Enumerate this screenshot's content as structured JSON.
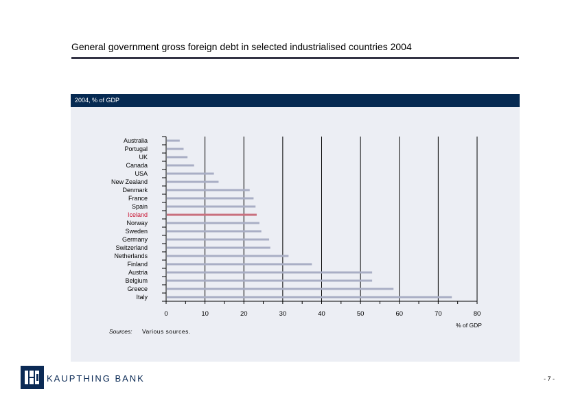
{
  "page": {
    "title": "General government gross foreign debt in selected industrialised countries 2004",
    "page_number": "- 7 -"
  },
  "panel": {
    "header": "2004, % of GDP",
    "sources_label": "Sources:",
    "sources_text": "Various sources."
  },
  "footer": {
    "brand": "KAUPTHING BANK"
  },
  "colors": {
    "bar": "#a9aec5",
    "highlight_bar": "#c9707e",
    "highlight_label": "#c8102e",
    "header_bg": "#062a52",
    "panel_bg": "#eceef4"
  },
  "chart_data": {
    "type": "bar",
    "orientation": "horizontal",
    "categories": [
      "Australia",
      "Portugal",
      "UK",
      "Canada",
      "USA",
      "New Zealand",
      "Denmark",
      "France",
      "Spain",
      "Iceland",
      "Norway",
      "Sweden",
      "Germany",
      "Switzerland",
      "Netherlands",
      "Finland",
      "Austria",
      "Belgium",
      "Greece",
      "Italy"
    ],
    "values": [
      3.5,
      4.5,
      5.5,
      7.2,
      12.3,
      13.5,
      21.5,
      22.5,
      23.0,
      23.3,
      24.0,
      24.5,
      26.5,
      26.8,
      31.5,
      37.5,
      53.0,
      53.0,
      58.5,
      73.5
    ],
    "highlight": "Iceland",
    "xlabel": "% of GDP",
    "xlim": [
      0,
      80
    ],
    "xticks": [
      "0",
      "10",
      "20",
      "30",
      "40",
      "50",
      "60",
      "70",
      "80"
    ],
    "grid": true
  }
}
